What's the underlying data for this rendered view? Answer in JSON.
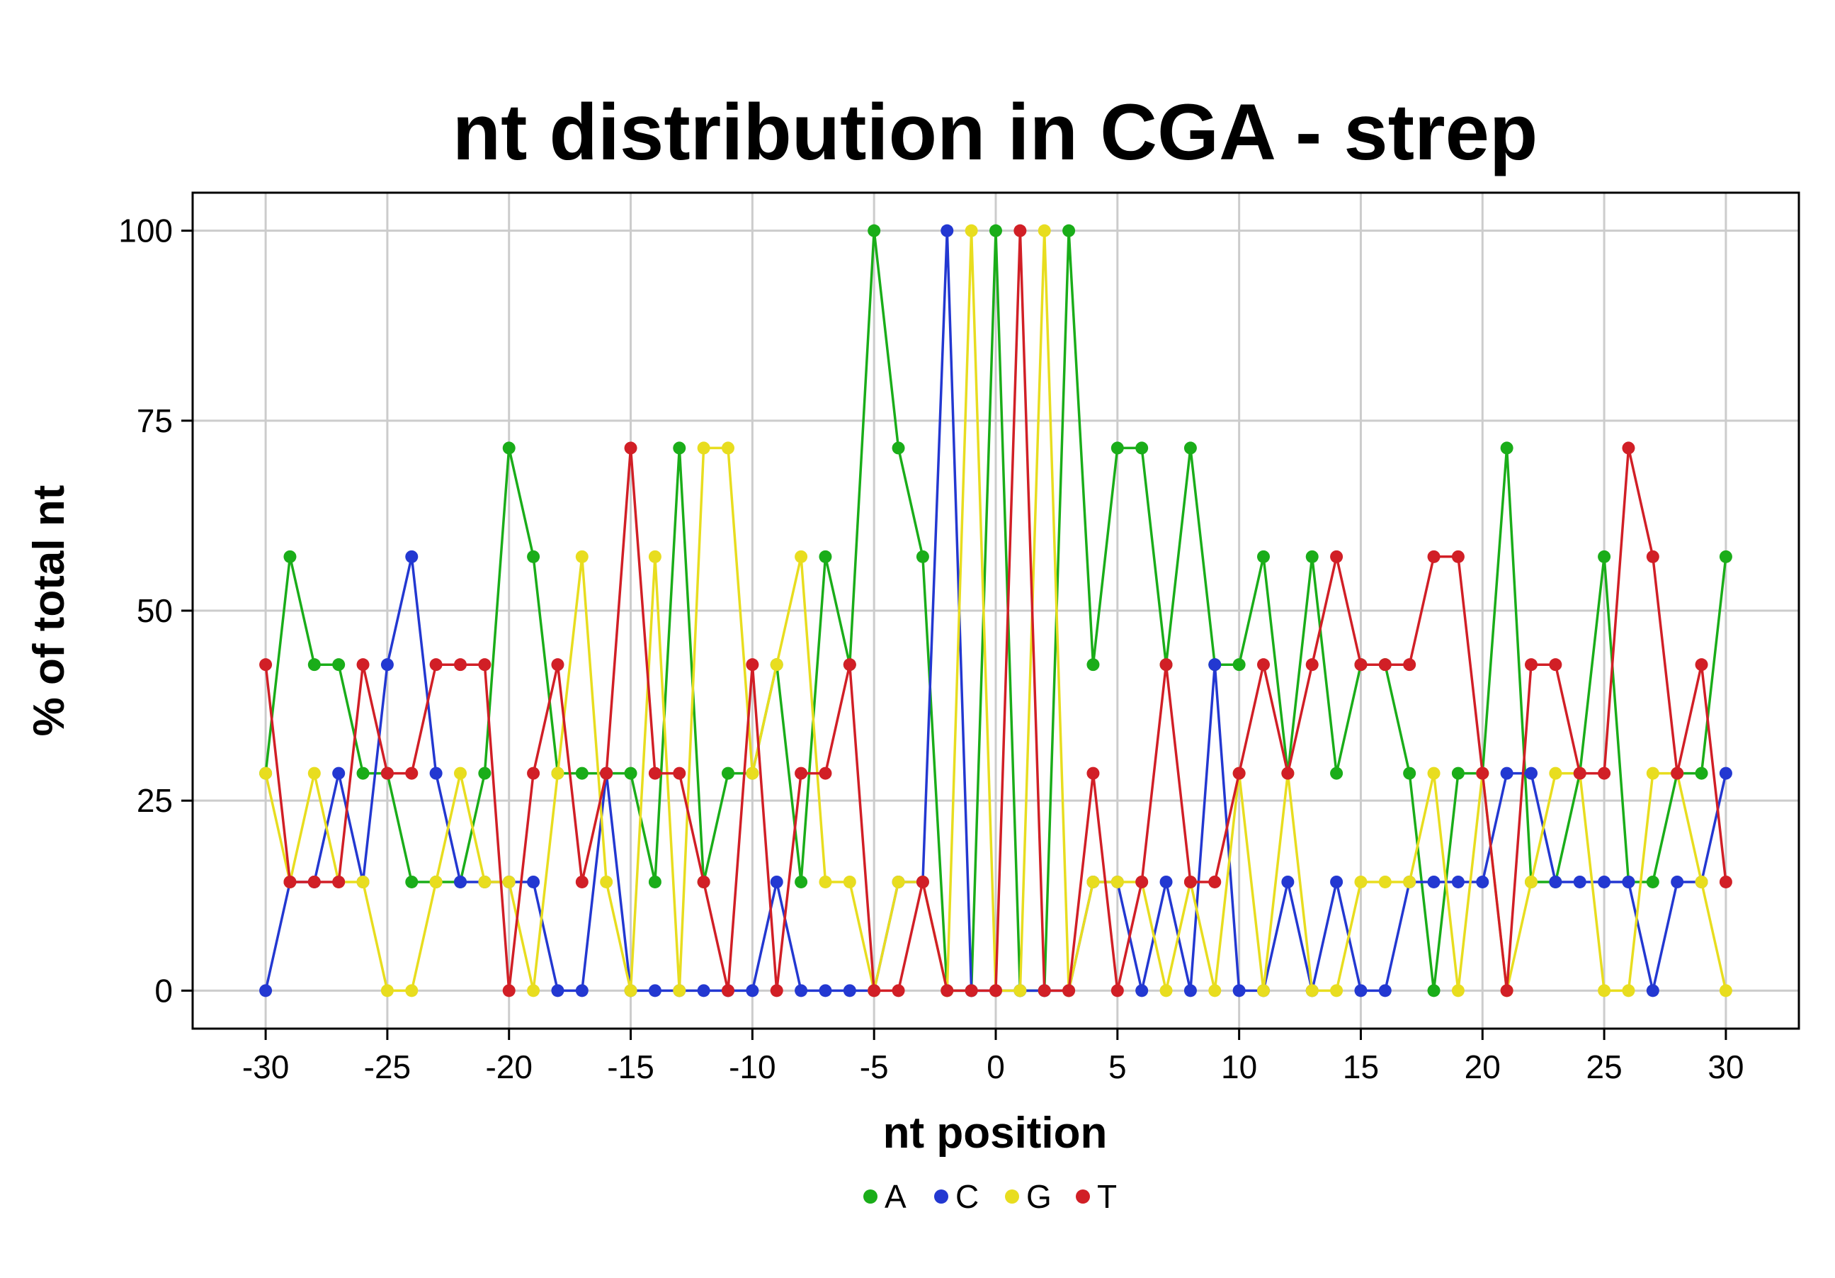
{
  "chart_data": {
    "type": "line",
    "title": "nt distribution in CGA - strep",
    "xlabel": "nt position",
    "ylabel": "% of total nt",
    "xlim": [
      -33,
      33
    ],
    "ylim": [
      -5,
      105
    ],
    "x_ticks": [
      -30,
      -25,
      -20,
      -15,
      -10,
      -5,
      0,
      5,
      10,
      15,
      20,
      25,
      30
    ],
    "x_tick_labels": [
      "-30",
      "-25",
      "-20",
      "-15",
      "-10",
      "-5",
      "0",
      "5",
      "10",
      "15",
      "20",
      "25",
      "30"
    ],
    "y_ticks": [
      0,
      25,
      50,
      75,
      100
    ],
    "y_tick_labels": [
      "0",
      "25",
      "50",
      "75",
      "100"
    ],
    "grid": true,
    "legend_position": "bottom",
    "x": [
      -30,
      -29,
      -28,
      -27,
      -26,
      -25,
      -24,
      -23,
      -22,
      -21,
      -20,
      -19,
      -18,
      -17,
      -16,
      -15,
      -14,
      -13,
      -12,
      -11,
      -10,
      -9,
      -8,
      -7,
      -6,
      -5,
      -4,
      -3,
      -2,
      -1,
      0,
      1,
      2,
      3,
      4,
      5,
      6,
      7,
      8,
      9,
      10,
      11,
      12,
      13,
      14,
      15,
      16,
      17,
      18,
      19,
      20,
      21,
      22,
      23,
      24,
      25,
      26,
      27,
      28,
      29,
      30
    ],
    "series": [
      {
        "name": "A",
        "color": "#1aad19",
        "values": [
          28.6,
          57.1,
          42.9,
          42.9,
          28.6,
          28.6,
          14.3,
          14.3,
          14.3,
          28.6,
          71.4,
          57.1,
          28.6,
          28.6,
          28.6,
          28.6,
          14.3,
          71.4,
          14.3,
          28.6,
          28.6,
          42.9,
          14.3,
          57.1,
          42.9,
          100,
          71.4,
          57.1,
          0,
          0,
          100,
          0,
          0,
          100,
          42.9,
          71.4,
          71.4,
          42.9,
          71.4,
          42.9,
          42.9,
          57.1,
          28.6,
          57.1,
          28.6,
          42.9,
          42.9,
          28.6,
          0,
          28.6,
          28.6,
          71.4,
          14.3,
          14.3,
          28.6,
          57.1,
          14.3,
          14.3,
          28.6,
          28.6,
          57.1
        ]
      },
      {
        "name": "C",
        "color": "#2338d1",
        "values": [
          0,
          14.3,
          14.3,
          28.6,
          14.3,
          42.9,
          57.1,
          28.6,
          14.3,
          14.3,
          14.3,
          14.3,
          0,
          0,
          28.6,
          0,
          0,
          0,
          0,
          0,
          0,
          14.3,
          0,
          0,
          0,
          0,
          14.3,
          14.3,
          100,
          0,
          0,
          0,
          0,
          0,
          14.3,
          14.3,
          0,
          14.3,
          0,
          42.9,
          0,
          0,
          14.3,
          0,
          14.3,
          0,
          0,
          14.3,
          14.3,
          14.3,
          14.3,
          28.6,
          28.6,
          14.3,
          14.3,
          14.3,
          14.3,
          0,
          14.3,
          14.3,
          28.6
        ]
      },
      {
        "name": "G",
        "color": "#e8dd1f",
        "values": [
          28.6,
          14.3,
          28.6,
          14.3,
          14.3,
          0,
          0,
          14.3,
          28.6,
          14.3,
          14.3,
          0,
          28.6,
          57.1,
          14.3,
          0,
          57.1,
          0,
          71.4,
          71.4,
          28.6,
          42.9,
          57.1,
          14.3,
          14.3,
          0,
          14.3,
          14.3,
          0,
          100,
          0,
          0,
          100,
          0,
          14.3,
          14.3,
          14.3,
          0,
          14.3,
          0,
          28.6,
          0,
          28.6,
          0,
          0,
          14.3,
          14.3,
          14.3,
          28.6,
          0,
          28.6,
          0,
          14.3,
          28.6,
          28.6,
          0,
          0,
          28.6,
          28.6,
          14.3,
          0
        ]
      },
      {
        "name": "T",
        "color": "#d11f26",
        "values": [
          42.9,
          14.3,
          14.3,
          14.3,
          42.9,
          28.6,
          28.6,
          42.9,
          42.9,
          42.9,
          0,
          28.6,
          42.9,
          14.3,
          28.6,
          71.4,
          28.6,
          28.6,
          14.3,
          0,
          42.9,
          0,
          28.6,
          28.6,
          42.9,
          0,
          0,
          14.3,
          0,
          0,
          0,
          100,
          0,
          0,
          28.6,
          0,
          14.3,
          42.9,
          14.3,
          14.3,
          28.6,
          42.9,
          28.6,
          42.9,
          57.1,
          42.9,
          42.9,
          42.9,
          57.1,
          57.1,
          28.6,
          0,
          42.9,
          42.9,
          28.6,
          28.6,
          71.4,
          57.1,
          28.6,
          42.9,
          14.3
        ]
      }
    ]
  }
}
